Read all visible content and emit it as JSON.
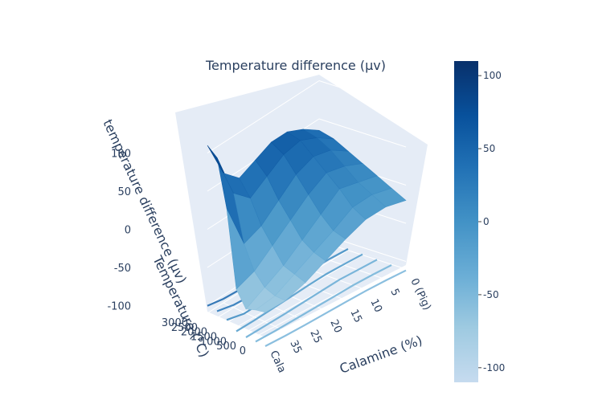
{
  "chart_data": {
    "type": "surface",
    "title": "Temperature difference (μv)",
    "scene": {
      "background": "#e5ecf6",
      "grid_color": "#ffffff",
      "x_axis": {
        "title": "Calamine (%)",
        "ticks": [
          "0 (Pig)",
          "5",
          "10",
          "15",
          "20",
          "25",
          "35",
          "Cala"
        ]
      },
      "y_axis": {
        "title": "Temperature (°C)",
        "ticks": [
          0,
          500,
          1000,
          1500,
          2000,
          2500,
          3000
        ],
        "range": [
          0,
          3000
        ]
      },
      "z_axis": {
        "title": "temperature difference (μv)",
        "ticks": [
          -100,
          -50,
          0,
          50,
          100
        ],
        "range": [
          -110,
          110
        ]
      }
    },
    "z_grid": [
      [
        -20,
        -15,
        -18,
        -30,
        -45,
        -60,
        -70,
        -72
      ],
      [
        -10,
        -5,
        -8,
        -25,
        -40,
        -55,
        -70,
        -75
      ],
      [
        0,
        5,
        10,
        -10,
        -30,
        -50,
        -65,
        -80
      ],
      [
        10,
        20,
        25,
        10,
        -10,
        -30,
        -50,
        -60
      ],
      [
        20,
        35,
        40,
        30,
        10,
        -10,
        -20,
        40
      ],
      [
        30,
        45,
        55,
        50,
        35,
        20,
        40,
        100
      ],
      [
        35,
        50,
        60,
        60,
        50,
        40,
        60,
        110
      ]
    ],
    "colorscale": {
      "name": "Blues",
      "min": -110,
      "max": 110,
      "stops": [
        "#c6dbef",
        "#9ecae1",
        "#6baed6",
        "#4292c6",
        "#2171b5",
        "#08519c",
        "#08306b"
      ],
      "ticks": [
        100,
        50,
        0,
        -50,
        -100
      ]
    }
  }
}
